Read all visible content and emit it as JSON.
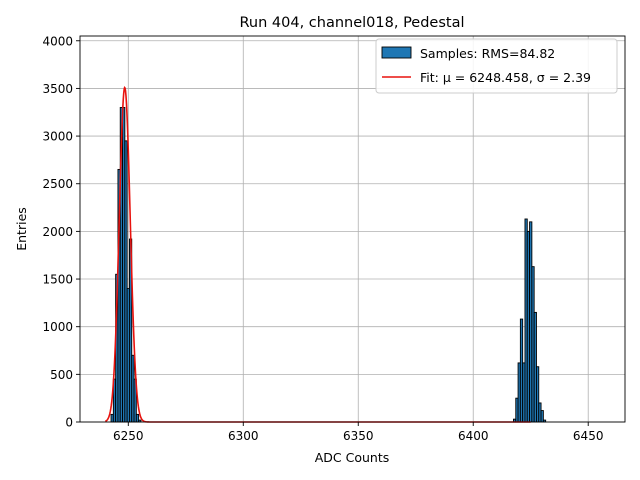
{
  "chart_data": {
    "type": "bar",
    "title": "Run 404, channel018, Pedestal",
    "xlabel": "ADC Counts",
    "ylabel": "Entries",
    "xlim": [
      6229,
      6466
    ],
    "ylim": [
      0,
      4050
    ],
    "xticks": [
      6250,
      6300,
      6350,
      6400,
      6450
    ],
    "yticks": [
      0,
      500,
      1000,
      1500,
      2000,
      2500,
      3000,
      3500,
      4000
    ],
    "grid": true,
    "legend_position": "top-right",
    "colors": {
      "bars": "#1f77b4",
      "bar_edge": "#000000",
      "fit": "#e8120e",
      "grid": "#b0b0b0"
    },
    "series": [
      {
        "name": "Samples: RMS=84.82",
        "kind": "histogram",
        "bin_width": 1,
        "x": [
          6243,
          6244,
          6245,
          6246,
          6247,
          6248,
          6249,
          6250,
          6251,
          6252,
          6253,
          6254,
          6255,
          6418,
          6419,
          6420,
          6421,
          6422,
          6423,
          6424,
          6425,
          6426,
          6427,
          6428,
          6429,
          6430,
          6431
        ],
        "values": [
          80,
          450,
          1550,
          2650,
          3300,
          3300,
          2950,
          1400,
          1920,
          700,
          450,
          80,
          20,
          30,
          250,
          620,
          1080,
          620,
          2130,
          2000,
          2100,
          1630,
          1150,
          580,
          200,
          120,
          20
        ]
      },
      {
        "name": "Fit: μ = 6248.458, σ = 2.39",
        "kind": "gaussian-fit",
        "mu": 6248.458,
        "sigma": 2.39,
        "amplitude": 3510,
        "x_range": [
          6240,
          6425
        ]
      }
    ]
  }
}
